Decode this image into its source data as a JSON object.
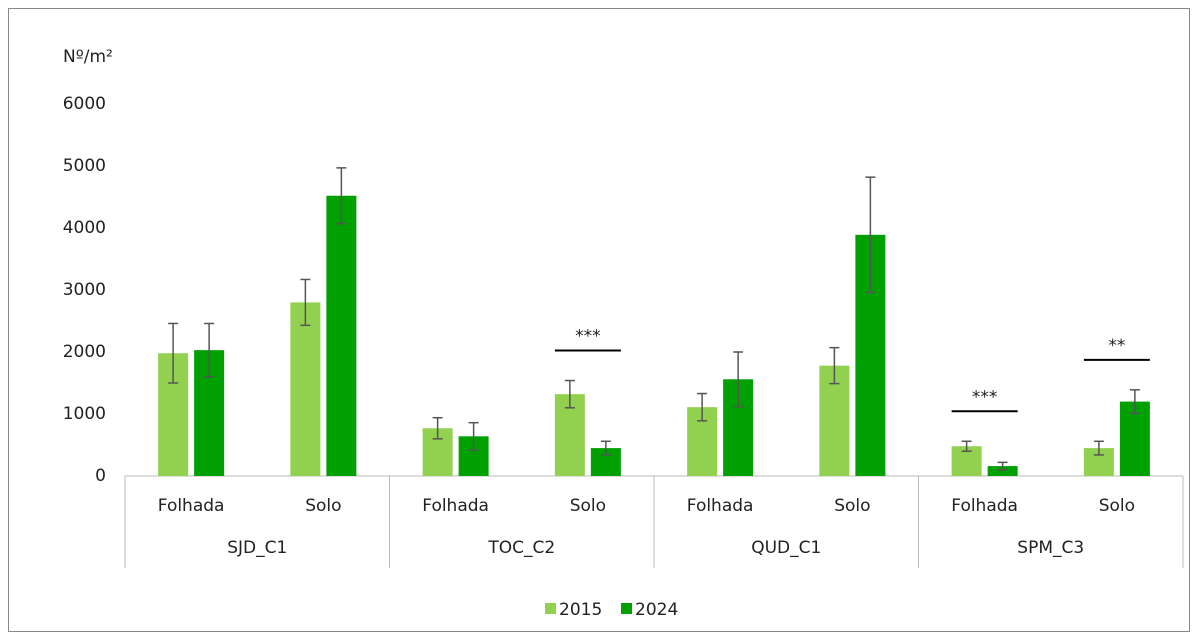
{
  "chart_data": {
    "type": "bar",
    "y_label": "Nº/m²",
    "groups": [
      "SJD_C1",
      "TOC_C2",
      "QUD_C1",
      "SPM_C3"
    ],
    "categories": [
      "Folhada",
      "Solo",
      "Folhada",
      "Solo",
      "Folhada",
      "Solo",
      "Folhada",
      "Solo"
    ],
    "series": [
      {
        "name": "2015",
        "color": "#92d050",
        "values": [
          1980,
          2800,
          770,
          1320,
          1110,
          1780,
          480,
          450
        ],
        "errors": [
          480,
          370,
          170,
          220,
          220,
          290,
          80,
          110
        ]
      },
      {
        "name": "2024",
        "color": "#00a000",
        "values": [
          2030,
          4520,
          640,
          450,
          1560,
          3890,
          160,
          1200
        ],
        "errors": [
          430,
          450,
          220,
          110,
          440,
          930,
          60,
          190
        ]
      }
    ],
    "annotations": [
      {
        "text": "***",
        "group": "TOC_C2",
        "category": "Solo"
      },
      {
        "text": "***",
        "group": "SPM_C3",
        "category": "Folhada"
      },
      {
        "text": "**",
        "group": "SPM_C3",
        "category": "Solo"
      }
    ],
    "ylim": [
      0,
      6000
    ],
    "yticks": [
      0,
      1000,
      2000,
      3000,
      4000,
      5000,
      6000
    ],
    "grid": false,
    "legend": "bottom"
  }
}
